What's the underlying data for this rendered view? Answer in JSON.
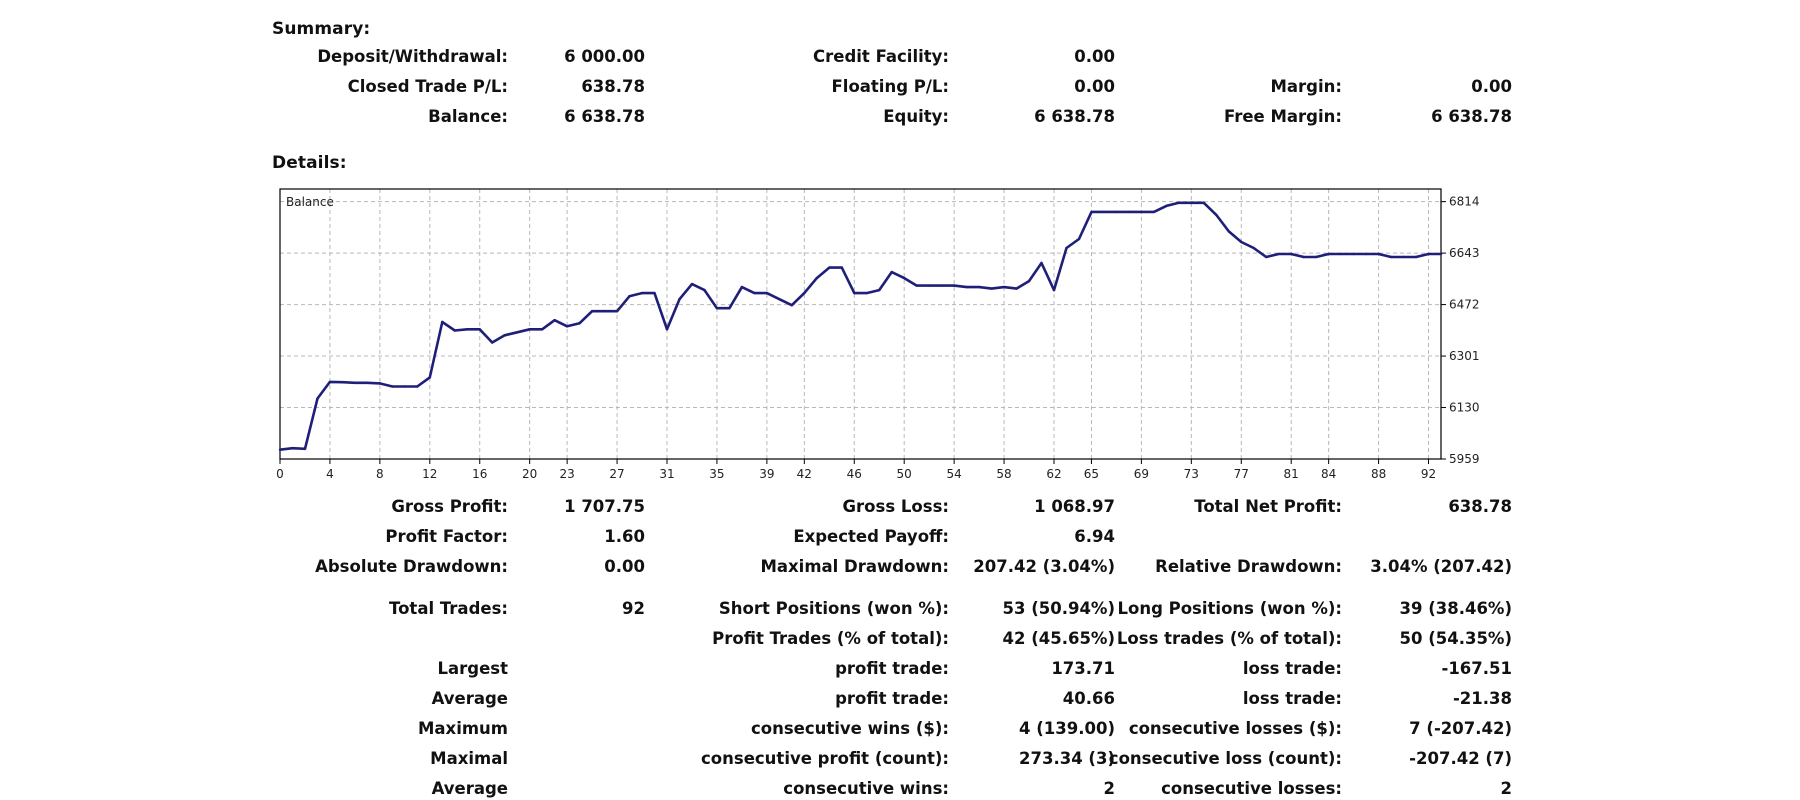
{
  "summary": {
    "title": "Summary:",
    "rows": [
      [
        {
          "label": "Deposit/Withdrawal:",
          "value": "6 000.00"
        },
        {
          "label": "Credit Facility:",
          "value": "0.00"
        },
        {
          "label": "",
          "value": ""
        }
      ],
      [
        {
          "label": "Closed Trade P/L:",
          "value": "638.78"
        },
        {
          "label": "Floating P/L:",
          "value": "0.00"
        },
        {
          "label": "Margin:",
          "value": "0.00"
        }
      ],
      [
        {
          "label": "Balance:",
          "value": "6 638.78"
        },
        {
          "label": "Equity:",
          "value": "6 638.78"
        },
        {
          "label": "Free Margin:",
          "value": "6 638.78"
        }
      ]
    ]
  },
  "details": {
    "title": "Details:",
    "rows": [
      [
        {
          "label": "Gross Profit:",
          "value": "1 707.75"
        },
        {
          "label": "Gross Loss:",
          "value": "1 068.97"
        },
        {
          "label": "Total Net Profit:",
          "value": "638.78"
        }
      ],
      [
        {
          "label": "Profit Factor:",
          "value": "1.60"
        },
        {
          "label": "Expected Payoff:",
          "value": "6.94"
        },
        {
          "label": "",
          "value": ""
        }
      ],
      [
        {
          "label": "Absolute Drawdown:",
          "value": "0.00"
        },
        {
          "label": "Maximal Drawdown:",
          "value": "207.42 (3.04%)"
        },
        {
          "label": "Relative Drawdown:",
          "value": "3.04% (207.42)"
        }
      ],
      [
        {
          "label": "Total Trades:",
          "value": "92"
        },
        {
          "label": "Short Positions (won %):",
          "value": "53 (50.94%)"
        },
        {
          "label": "Long Positions (won %):",
          "value": "39 (38.46%)"
        }
      ],
      [
        {
          "label": "",
          "value": ""
        },
        {
          "label": "Profit Trades (% of total):",
          "value": "42 (45.65%)"
        },
        {
          "label": "Loss trades (% of total):",
          "value": "50 (54.35%)"
        }
      ],
      [
        {
          "label": "Largest",
          "value": ""
        },
        {
          "label": "profit trade:",
          "value": "173.71"
        },
        {
          "label": "loss trade:",
          "value": "-167.51"
        }
      ],
      [
        {
          "label": "Average",
          "value": ""
        },
        {
          "label": "profit trade:",
          "value": "40.66"
        },
        {
          "label": "loss trade:",
          "value": "-21.38"
        }
      ],
      [
        {
          "label": "Maximum",
          "value": ""
        },
        {
          "label": "consecutive wins ($):",
          "value": "4 (139.00)"
        },
        {
          "label": "consecutive losses ($):",
          "value": "7 (-207.42)"
        }
      ],
      [
        {
          "label": "Maximal",
          "value": ""
        },
        {
          "label": "consecutive profit (count):",
          "value": "273.34 (3)"
        },
        {
          "label": "consecutive loss (count):",
          "value": "-207.42 (7)"
        }
      ],
      [
        {
          "label": "Average",
          "value": ""
        },
        {
          "label": "consecutive wins:",
          "value": "2"
        },
        {
          "label": "consecutive losses:",
          "value": "2"
        }
      ]
    ]
  },
  "chart_data": {
    "type": "line",
    "title": "Balance",
    "line_color": "#1f1f7a",
    "grid": true,
    "xlim": [
      0,
      93
    ],
    "ylim": [
      5959,
      6856
    ],
    "x_ticks": [
      "0",
      "4",
      "8",
      "12",
      "16",
      "20",
      "23",
      "27",
      "31",
      "35",
      "39",
      "42",
      "46",
      "50",
      "54",
      "58",
      "62",
      "65",
      "69",
      "73",
      "77",
      "81",
      "84",
      "88",
      "92"
    ],
    "y_ticks": [
      "6814",
      "6643",
      "6472",
      "6301",
      "6130",
      "5959"
    ],
    "series": [
      {
        "name": "Balance",
        "x": [
          0,
          1,
          2,
          3,
          4,
          5,
          6,
          7,
          8,
          9,
          10,
          11,
          12,
          13,
          14,
          15,
          16,
          17,
          18,
          19,
          20,
          21,
          22,
          23,
          24,
          25,
          26,
          27,
          28,
          29,
          30,
          31,
          32,
          33,
          34,
          35,
          36,
          37,
          38,
          39,
          40,
          41,
          42,
          43,
          44,
          45,
          46,
          47,
          48,
          49,
          50,
          51,
          52,
          53,
          54,
          55,
          56,
          57,
          58,
          59,
          60,
          61,
          62,
          63,
          64,
          65,
          66,
          67,
          68,
          69,
          70,
          71,
          72,
          73,
          74,
          75,
          76,
          77,
          78,
          79,
          80,
          81,
          82,
          83,
          84,
          85,
          86,
          87,
          88,
          89,
          90,
          91,
          92,
          93
        ],
        "values": [
          5990,
          5995,
          5993,
          6160,
          6215,
          6214,
          6212,
          6212,
          6210,
          6200,
          6200,
          6200,
          6230,
          6414,
          6386,
          6390,
          6390,
          6346,
          6370,
          6380,
          6390,
          6390,
          6420,
          6400,
          6410,
          6450,
          6450,
          6450,
          6500,
          6510,
          6510,
          6390,
          6490,
          6540,
          6520,
          6460,
          6460,
          6530,
          6510,
          6510,
          6490,
          6470,
          6510,
          6560,
          6595,
          6595,
          6510,
          6510,
          6520,
          6580,
          6560,
          6535,
          6535,
          6535,
          6535,
          6530,
          6530,
          6525,
          6530,
          6525,
          6550,
          6610,
          6520,
          6660,
          6690,
          6780,
          6780,
          6780,
          6780,
          6780,
          6780,
          6800,
          6810,
          6810,
          6810,
          6770,
          6715,
          6680,
          6660,
          6630,
          6640,
          6640,
          6630,
          6630,
          6640,
          6640,
          6640,
          6640,
          6640,
          6630,
          6630,
          6630,
          6640,
          6640
        ]
      }
    ]
  }
}
